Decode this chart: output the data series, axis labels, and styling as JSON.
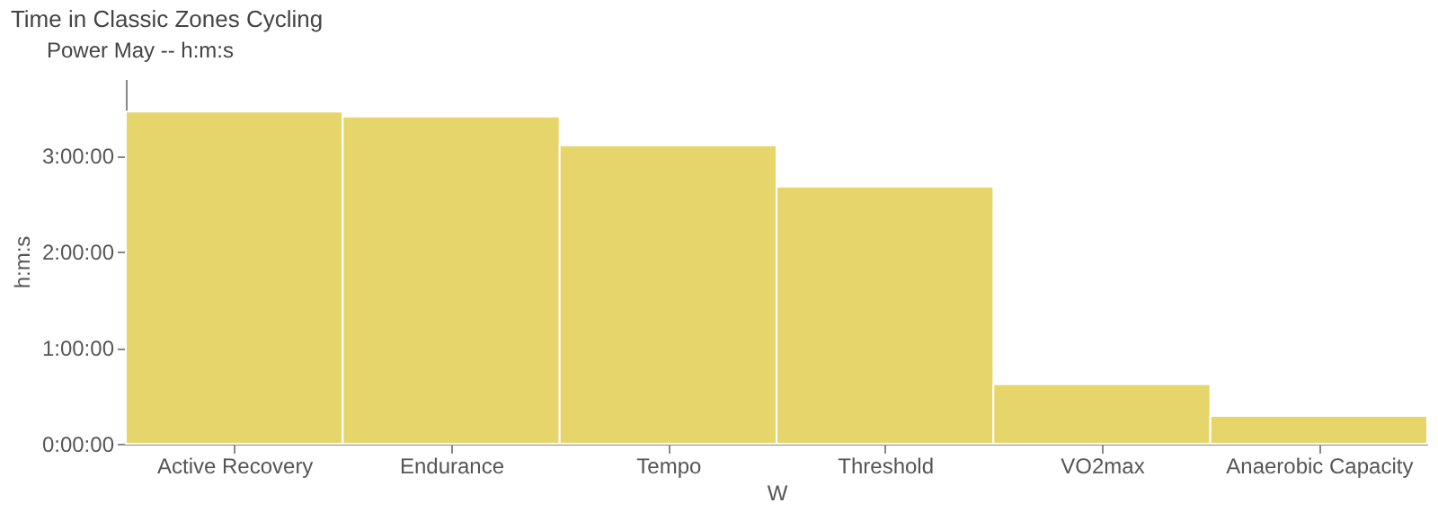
{
  "chart_data": {
    "type": "bar",
    "title": "Time in Classic Zones Cycling",
    "xlabel": "W",
    "ylabel": "h:m:s",
    "categories": [
      "Active Recovery",
      "Endurance",
      "Tempo",
      "Threshold",
      "VO2max",
      "Anaerobic Capacity"
    ],
    "series": [
      {
        "name": "Power   May   -- h:m:s",
        "color": "#e6d56a",
        "values": [
          3.46,
          3.41,
          3.11,
          2.68,
          0.62,
          0.29
        ]
      }
    ],
    "ylim": [
      0,
      3.8
    ],
    "yticks": [
      {
        "value": 0,
        "label": "0:00:00"
      },
      {
        "value": 1,
        "label": "1:00:00"
      },
      {
        "value": 2,
        "label": "2:00:00"
      },
      {
        "value": 3,
        "label": "3:00:00"
      }
    ],
    "grid": false,
    "legend": "top left"
  }
}
